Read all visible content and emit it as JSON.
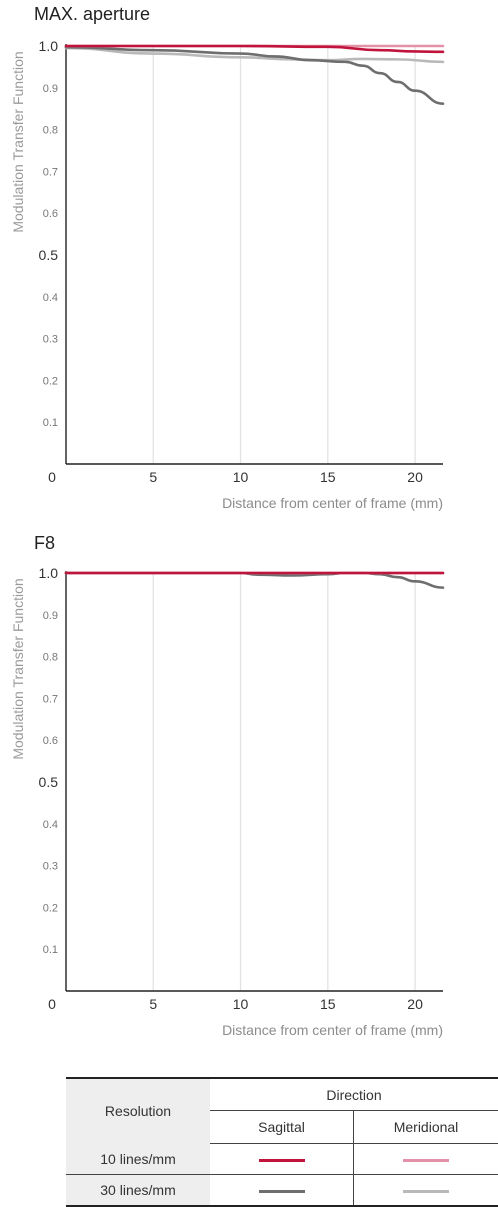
{
  "colors": {
    "sagittal_10": "#c0143c",
    "meridional_10": "#e391a8",
    "sagittal_30": "#6e6e6e",
    "meridional_30": "#b9b9b9",
    "grid": "#e3e3e3",
    "axis": "#222222"
  },
  "chart_data": [
    {
      "type": "line",
      "title": "MAX. aperture",
      "ylabel": "Modulation Transfer Function",
      "xlabel": "Distance from center of frame (mm)",
      "xlim": [
        0,
        21.6
      ],
      "ylim": [
        0,
        1.0
      ],
      "x_ticks": [
        "5",
        "10",
        "15",
        "20"
      ],
      "x_tick_values": [
        5,
        10,
        15,
        20
      ],
      "y_ticks": [
        "0.1",
        "0.2",
        "0.3",
        "0.4",
        "0.5",
        "0.6",
        "0.7",
        "0.8",
        "0.9",
        "1.0"
      ],
      "y_tick_values": [
        0.1,
        0.2,
        0.3,
        0.4,
        0.5,
        0.6,
        0.7,
        0.8,
        0.9,
        1.0
      ],
      "origin_label": "0",
      "grid": true,
      "series": [
        {
          "key": "sagittal_10",
          "x": [
            0,
            5,
            10,
            15,
            18,
            20,
            21.6
          ],
          "y": [
            1.0,
            1.0,
            1.0,
            0.998,
            0.99,
            0.987,
            0.986
          ]
        },
        {
          "key": "meridional_10",
          "x": [
            0,
            5,
            10,
            15,
            20,
            21.6
          ],
          "y": [
            1.0,
            1.0,
            1.0,
            1.0,
            1.0,
            1.0
          ]
        },
        {
          "key": "sagittal_30",
          "x": [
            0,
            5,
            10,
            12,
            14,
            16,
            17,
            18,
            19,
            20,
            21.6
          ],
          "y": [
            0.997,
            0.99,
            0.982,
            0.975,
            0.966,
            0.962,
            0.953,
            0.935,
            0.914,
            0.893,
            0.862
          ]
        },
        {
          "key": "meridional_30",
          "x": [
            0,
            5,
            10,
            13,
            15,
            17,
            19,
            21.6
          ],
          "y": [
            0.995,
            0.982,
            0.973,
            0.968,
            0.966,
            0.969,
            0.968,
            0.962
          ]
        }
      ]
    },
    {
      "type": "line",
      "title": "F8",
      "ylabel": "Modulation Transfer Function",
      "xlabel": "Distance from center of frame (mm)",
      "xlim": [
        0,
        21.6
      ],
      "ylim": [
        0,
        1.0
      ],
      "x_ticks": [
        "5",
        "10",
        "15",
        "20"
      ],
      "x_tick_values": [
        5,
        10,
        15,
        20
      ],
      "y_ticks": [
        "0.1",
        "0.2",
        "0.3",
        "0.4",
        "0.5",
        "0.6",
        "0.7",
        "0.8",
        "0.9",
        "1.0"
      ],
      "y_tick_values": [
        0.1,
        0.2,
        0.3,
        0.4,
        0.5,
        0.6,
        0.7,
        0.8,
        0.9,
        1.0
      ],
      "origin_label": "0",
      "grid": true,
      "series": [
        {
          "key": "sagittal_10",
          "x": [
            0,
            5,
            10,
            15,
            20,
            21.6
          ],
          "y": [
            1.0,
            1.0,
            1.0,
            1.0,
            1.0,
            1.0
          ]
        },
        {
          "key": "meridional_10",
          "x": [
            0,
            5,
            10,
            15,
            20,
            21.6
          ],
          "y": [
            1.0,
            1.0,
            1.0,
            1.0,
            1.0,
            1.0
          ]
        },
        {
          "key": "sagittal_30",
          "x": [
            0,
            5,
            10,
            11,
            13,
            15,
            16,
            17,
            18,
            19,
            20,
            21.6
          ],
          "y": [
            1.0,
            1.0,
            1.0,
            0.996,
            0.994,
            0.997,
            1.0,
            1.0,
            0.997,
            0.99,
            0.98,
            0.965
          ]
        },
        {
          "key": "meridional_30",
          "x": [
            0,
            5,
            10,
            15,
            20,
            21.6
          ],
          "y": [
            1.0,
            1.0,
            1.0,
            1.0,
            1.0,
            1.0
          ]
        }
      ]
    }
  ],
  "legend": {
    "resolution_header": "Resolution",
    "direction_header": "Direction",
    "sagittal": "Sagittal",
    "meridional": "Meridional",
    "rows": [
      {
        "label": "10 lines/mm",
        "sagittal_key": "sagittal_10",
        "meridional_key": "meridional_10"
      },
      {
        "label": "30 lines/mm",
        "sagittal_key": "sagittal_30",
        "meridional_key": "meridional_30"
      }
    ]
  }
}
